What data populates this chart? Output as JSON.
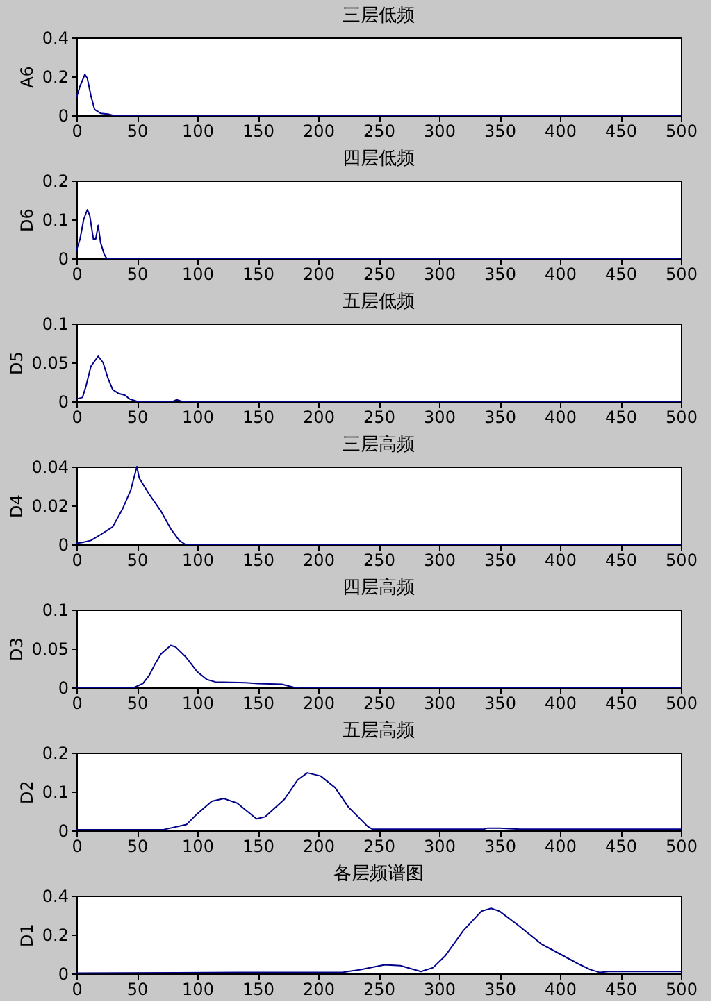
{
  "chart_data": [
    {
      "type": "line",
      "title": "三层低频",
      "ylabel": "A6",
      "xlim": [
        0,
        500
      ],
      "ylim": [
        0,
        0.4
      ],
      "xticks": [
        0,
        50,
        100,
        150,
        200,
        250,
        300,
        350,
        400,
        450,
        500
      ],
      "yticks": [
        0,
        0.2,
        0.4
      ],
      "grid": false,
      "x": [
        0,
        3,
        7,
        9,
        12,
        15,
        20,
        27,
        30,
        500
      ],
      "series": [
        {
          "color": "#00008b",
          "values": [
            0.09,
            0.15,
            0.21,
            0.19,
            0.1,
            0.03,
            0.01,
            0.005,
            0,
            0
          ]
        }
      ]
    },
    {
      "type": "line",
      "title": "四层低频",
      "ylabel": "D6",
      "xlim": [
        0,
        500
      ],
      "ylim": [
        0,
        0.2
      ],
      "xticks": [
        0,
        50,
        100,
        150,
        200,
        250,
        300,
        350,
        400,
        450,
        500
      ],
      "yticks": [
        0,
        0.1,
        0.2
      ],
      "grid": false,
      "x": [
        0,
        3,
        6,
        9,
        11,
        14,
        16,
        18,
        20,
        23,
        25,
        500
      ],
      "series": [
        {
          "color": "#00008b",
          "values": [
            0.02,
            0.05,
            0.1,
            0.125,
            0.11,
            0.05,
            0.05,
            0.085,
            0.04,
            0.01,
            0,
            0
          ]
        }
      ]
    },
    {
      "type": "line",
      "title": "五层低频",
      "ylabel": "D5",
      "xlim": [
        0,
        500
      ],
      "ylim": [
        0,
        0.1
      ],
      "xticks": [
        0,
        50,
        100,
        150,
        200,
        250,
        300,
        350,
        400,
        450,
        500
      ],
      "yticks": [
        0,
        0.05,
        0.1
      ],
      "grid": false,
      "x": [
        0,
        5,
        8,
        12,
        18,
        22,
        26,
        30,
        35,
        40,
        44,
        50,
        80,
        83,
        87,
        500
      ],
      "series": [
        {
          "color": "#00008b",
          "values": [
            0.003,
            0.005,
            0.02,
            0.045,
            0.058,
            0.05,
            0.03,
            0.015,
            0.01,
            0.008,
            0.003,
            0,
            0,
            0.002,
            0,
            0
          ]
        }
      ]
    },
    {
      "type": "line",
      "title": "三层高频",
      "ylabel": "D4",
      "xlim": [
        0,
        500
      ],
      "ylim": [
        0,
        0.04
      ],
      "xticks": [
        0,
        50,
        100,
        150,
        200,
        250,
        300,
        350,
        400,
        450,
        500
      ],
      "yticks": [
        0,
        0.02,
        0.04
      ],
      "grid": false,
      "x": [
        0,
        5,
        12,
        20,
        30,
        38,
        45,
        50,
        52,
        60,
        70,
        78,
        85,
        90,
        500
      ],
      "series": [
        {
          "color": "#00008b",
          "values": [
            0.0005,
            0.001,
            0.002,
            0.005,
            0.009,
            0.018,
            0.028,
            0.04,
            0.034,
            0.026,
            0.017,
            0.008,
            0.002,
            0,
            0
          ]
        }
      ]
    },
    {
      "type": "line",
      "title": "四层高频",
      "ylabel": "D3",
      "xlim": [
        0,
        500
      ],
      "ylim": [
        0,
        0.1
      ],
      "xticks": [
        0,
        50,
        100,
        150,
        200,
        250,
        300,
        350,
        400,
        450,
        500
      ],
      "yticks": [
        0,
        0.05,
        0.1
      ],
      "grid": false,
      "x": [
        0,
        48,
        55,
        60,
        65,
        70,
        78,
        82,
        90,
        100,
        108,
        115,
        140,
        150,
        170,
        180,
        500
      ],
      "series": [
        {
          "color": "#00008b",
          "values": [
            0,
            0,
            0.005,
            0.015,
            0.03,
            0.043,
            0.054,
            0.052,
            0.04,
            0.02,
            0.01,
            0.007,
            0.006,
            0.005,
            0.004,
            0,
            0
          ]
        }
      ]
    },
    {
      "type": "line",
      "title": "五层高频",
      "ylabel": "D2",
      "xlim": [
        0,
        500
      ],
      "ylim": [
        0,
        0.2
      ],
      "xticks": [
        0,
        50,
        100,
        150,
        200,
        250,
        300,
        350,
        400,
        450,
        500
      ],
      "yticks": [
        0,
        0.1,
        0.2
      ],
      "grid": false,
      "x": [
        0,
        72,
        91,
        99,
        112,
        122,
        133,
        149,
        156,
        172,
        183,
        191,
        202,
        214,
        225,
        241,
        245,
        337,
        340,
        350,
        367,
        500
      ],
      "series": [
        {
          "color": "#00008b",
          "values": [
            0.002,
            0.002,
            0.015,
            0.04,
            0.075,
            0.082,
            0.07,
            0.03,
            0.035,
            0.08,
            0.13,
            0.148,
            0.14,
            0.11,
            0.06,
            0.01,
            0.003,
            0.003,
            0.006,
            0.006,
            0.003,
            0.003
          ]
        }
      ]
    },
    {
      "type": "line",
      "title": "各层频谱图",
      "ylabel": "D1",
      "xlim": [
        0,
        500
      ],
      "ylim": [
        0,
        0.4
      ],
      "xticks": [
        0,
        50,
        100,
        150,
        200,
        250,
        300,
        350,
        400,
        450,
        500
      ],
      "yticks": [
        0,
        0.2,
        0.4
      ],
      "grid": false,
      "x": [
        0,
        135,
        220,
        235,
        255,
        268,
        285,
        295,
        305,
        320,
        335,
        343,
        350,
        365,
        385,
        400,
        415,
        425,
        433,
        440,
        500
      ],
      "series": [
        {
          "color": "#00008b",
          "values": [
            0.002,
            0.005,
            0.005,
            0.02,
            0.045,
            0.04,
            0.01,
            0.03,
            0.09,
            0.22,
            0.32,
            0.335,
            0.32,
            0.25,
            0.15,
            0.1,
            0.05,
            0.02,
            0.005,
            0.01,
            0.01
          ]
        }
      ]
    }
  ]
}
